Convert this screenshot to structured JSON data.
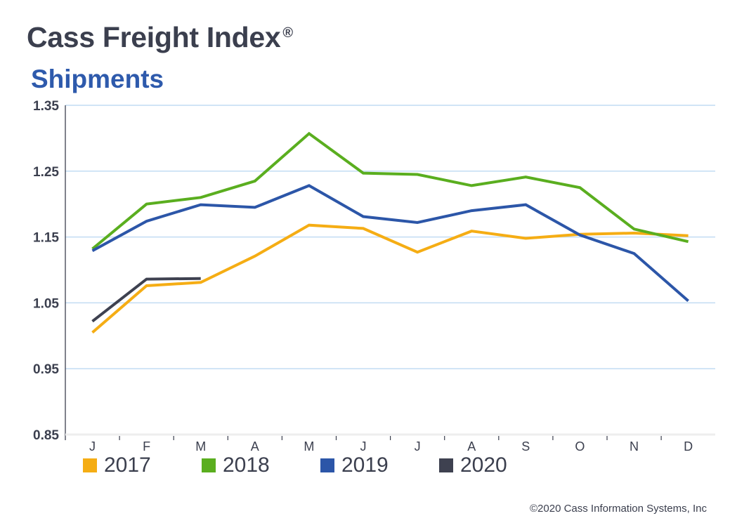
{
  "header": {
    "title": "Cass Freight Index",
    "registered_mark": "®",
    "subtitle": "Shipments"
  },
  "footer": {
    "copyright": "©2020 Cass Information Systems, Inc"
  },
  "chart_data": {
    "type": "line",
    "title": "Cass Freight Index® Shipments",
    "xlabel": "",
    "ylabel": "",
    "categories": [
      "J",
      "F",
      "M",
      "A",
      "M",
      "J",
      "J",
      "A",
      "S",
      "O",
      "N",
      "D"
    ],
    "ylim": [
      0.85,
      1.35
    ],
    "yticks": [
      "0.85",
      "0.95",
      "1.05",
      "1.15",
      "1.25",
      "1.35"
    ],
    "ytick_values": [
      0.85,
      0.95,
      1.05,
      1.15,
      1.25,
      1.35
    ],
    "grid": true,
    "legend_position": "bottom",
    "series": [
      {
        "name": "2017",
        "color": "#f5ad14",
        "values": [
          1.005,
          1.076,
          1.081,
          1.121,
          1.168,
          1.163,
          1.127,
          1.159,
          1.148,
          1.154,
          1.156,
          1.152
        ]
      },
      {
        "name": "2018",
        "color": "#5aae1f",
        "values": [
          1.132,
          1.2,
          1.21,
          1.235,
          1.307,
          1.247,
          1.245,
          1.228,
          1.241,
          1.225,
          1.162,
          1.143
        ]
      },
      {
        "name": "2019",
        "color": "#2c56a8",
        "values": [
          1.129,
          1.174,
          1.199,
          1.195,
          1.228,
          1.181,
          1.172,
          1.19,
          1.199,
          1.153,
          1.125,
          1.053
        ]
      },
      {
        "name": "2020",
        "color": "#3e4150",
        "values": [
          1.022,
          1.086,
          1.087
        ]
      }
    ]
  }
}
